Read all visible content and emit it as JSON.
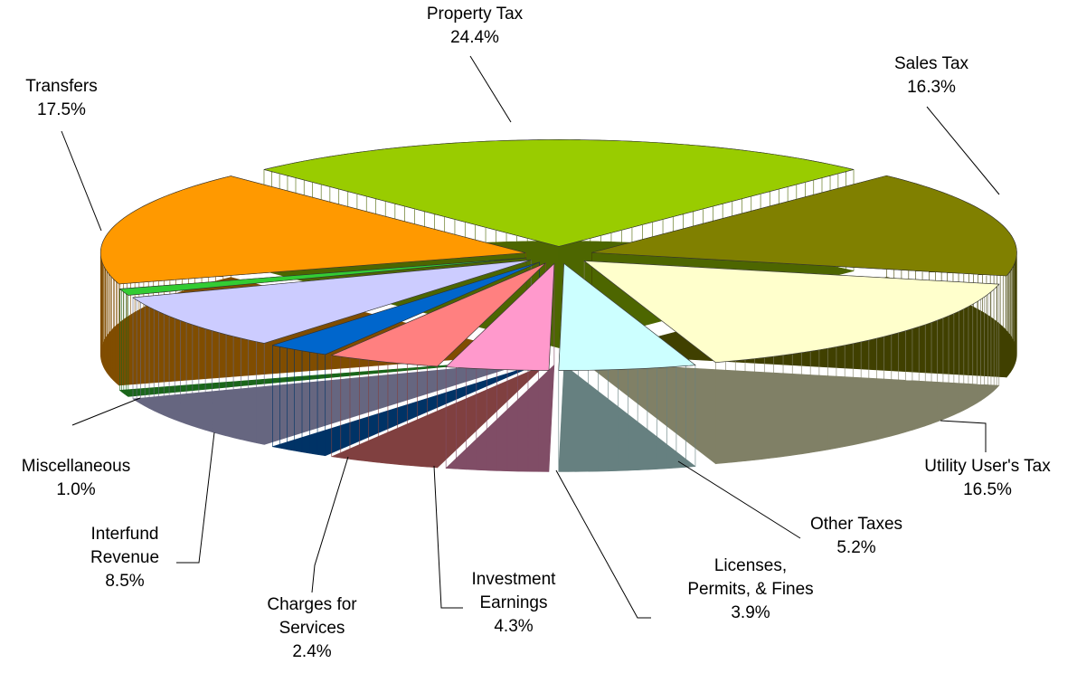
{
  "chart_data": {
    "type": "pie",
    "categories": [
      "Property Tax",
      "Sales Tax",
      "Utility User's Tax",
      "Other Taxes",
      "Licenses,\nPermits, & Fines",
      "Investment\nEarnings",
      "Charges for\nServices",
      "Interfund\nRevenue",
      "Miscellaneous",
      "Transfers"
    ],
    "values": [
      24.4,
      16.3,
      16.5,
      5.2,
      3.9,
      4.3,
      2.4,
      8.5,
      1.0,
      17.5
    ],
    "value_labels": [
      "24.4%",
      "16.3%",
      "16.5%",
      "5.2%",
      "3.9%",
      "4.3%",
      "2.4%",
      "8.5%",
      "1.0%",
      "17.5%"
    ],
    "colors": [
      "#99cc00",
      "#808000",
      "#ffffcc",
      "#ccffff",
      "#ff99cc",
      "#ff8080",
      "#0066cc",
      "#ccccff",
      "#33cc33",
      "#ff9900"
    ]
  }
}
